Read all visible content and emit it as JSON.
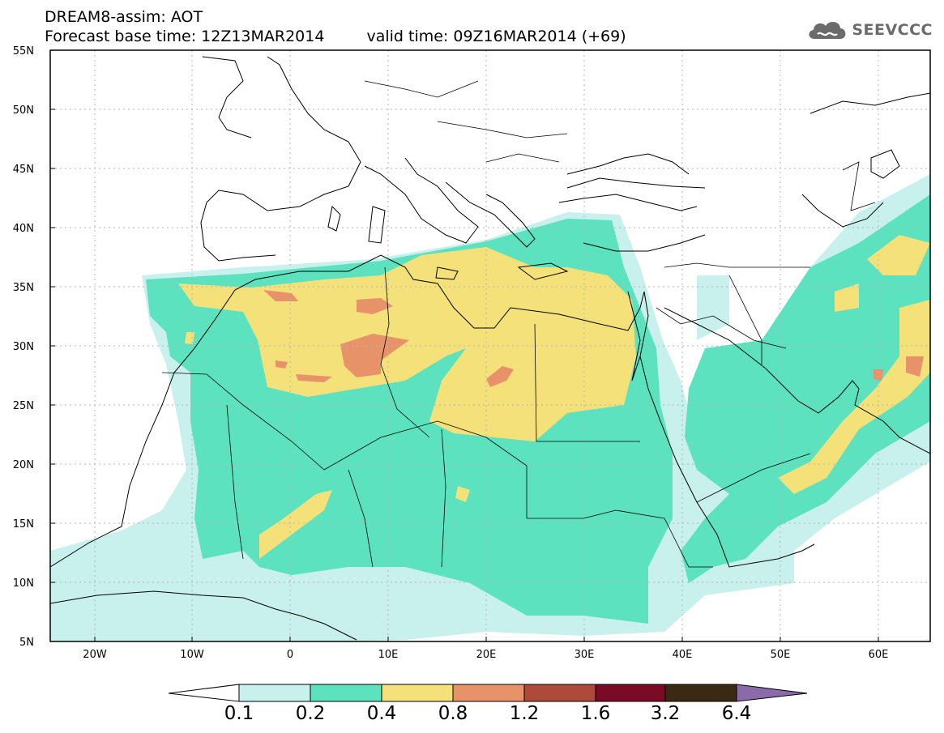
{
  "title": {
    "line1": "DREAM8-assim: AOT",
    "base_time": "Forecast base time: 12Z13MAR2014",
    "valid_time": "valid time: 09Z16MAR2014 (+69)"
  },
  "logo": {
    "text": "SEEVCCC",
    "icon": "cloud-icon"
  },
  "map": {
    "lat_labels": [
      "55N",
      "50N",
      "45N",
      "40N",
      "35N",
      "30N",
      "25N",
      "20N",
      "15N",
      "10N",
      "5N"
    ],
    "lon_labels": [
      "20W",
      "10W",
      "0",
      "10E",
      "20E",
      "30E",
      "40E",
      "50E",
      "60E"
    ]
  },
  "colorbar": {
    "labels": [
      "0.1",
      "0.2",
      "0.4",
      "0.8",
      "1.2",
      "1.6",
      "3.2",
      "6.4"
    ],
    "colors": [
      "#ffffff",
      "#c8f0ec",
      "#5ce2be",
      "#f4e17a",
      "#e8926a",
      "#ad4a3c",
      "#7a0a26",
      "#3a2a14",
      "#8a6aa8"
    ]
  }
}
